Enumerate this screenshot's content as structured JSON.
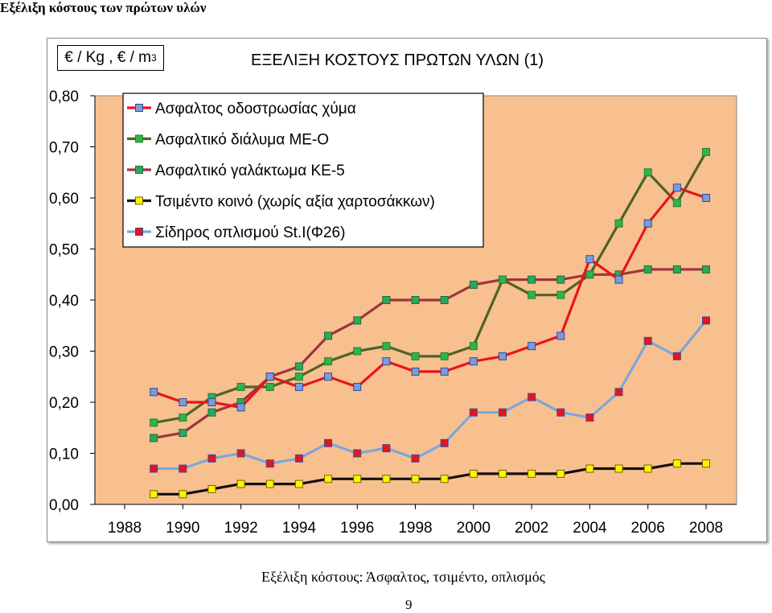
{
  "page_header": "Εξέλιξη κόστους των πρώτων υλών",
  "caption": "Εξέλιξη κόστους: Άσφαλτος, τσιμέντο, οπλισμός",
  "page_number": "9",
  "unit_label": {
    "main": "€ / Kg , € / m",
    "sup": "3"
  },
  "colors": {
    "plot_background": "#F8C08F",
    "axis": "#000000"
  },
  "chart_data": {
    "type": "line",
    "title": "ΕΞΕΛΙΞΗ ΚΟΣΤΟΥΣ ΠΡΩΤΩΝ ΥΛΩΝ (1)",
    "xlabel": "",
    "ylabel": "€ / Kg , € / m3",
    "xlim": [
      1988,
      2008
    ],
    "ylim": [
      0,
      0.8
    ],
    "x_ticks": [
      "1988",
      "1990",
      "1992",
      "1994",
      "1996",
      "1998",
      "2000",
      "2002",
      "2004",
      "2006",
      "2008"
    ],
    "y_ticks": [
      "0,00",
      "0,10",
      "0,20",
      "0,30",
      "0,40",
      "0,50",
      "0,60",
      "0,70",
      "0,80"
    ],
    "grid": false,
    "legend_position": "top-left",
    "x": [
      1989,
      1990,
      1991,
      1992,
      1993,
      1994,
      1995,
      1996,
      1997,
      1998,
      1999,
      2000,
      2001,
      2002,
      2003,
      2004,
      2005,
      2006,
      2007,
      2008
    ],
    "series": [
      {
        "name": "Ασφαλτος οδοστρωσίας χύμα",
        "line_color": "#E8141B",
        "marker_color": "#7B9CD6",
        "marker_border": "#2E4B9E",
        "values": [
          0.22,
          0.2,
          0.2,
          0.19,
          0.25,
          0.23,
          0.25,
          0.23,
          0.28,
          0.26,
          0.26,
          0.28,
          0.29,
          0.31,
          0.33,
          0.48,
          0.44,
          0.55,
          0.62,
          0.6
        ]
      },
      {
        "name": "Ασφαλτικό διάλυμα ΜΕ-Ο",
        "line_color": "#4F6228",
        "marker_color": "#2BB54A",
        "marker_border": "#2E7D32",
        "values": [
          0.16,
          0.17,
          0.21,
          0.23,
          0.23,
          0.25,
          0.28,
          0.3,
          0.31,
          0.29,
          0.29,
          0.31,
          0.44,
          0.41,
          0.41,
          0.45,
          0.55,
          0.65,
          0.59,
          0.69
        ]
      },
      {
        "name": "Ασφαλτικό γαλάκτωμα ΚΕ-5",
        "line_color": "#A0353B",
        "marker_color": "#2BA85A",
        "marker_border": "#1E6E3A",
        "values": [
          0.13,
          0.14,
          0.18,
          0.2,
          0.25,
          0.27,
          0.33,
          0.36,
          0.4,
          0.4,
          0.4,
          0.43,
          0.44,
          0.44,
          0.44,
          0.45,
          0.45,
          0.46,
          0.46,
          0.46
        ]
      },
      {
        "name": "Τσιμέντο κοινό (χωρίς αξία χαρτοσάκκων)",
        "line_color": "#101010",
        "marker_color": "#FFF200",
        "marker_border": "#6E6A00",
        "values": [
          0.02,
          0.02,
          0.03,
          0.04,
          0.04,
          0.04,
          0.05,
          0.05,
          0.05,
          0.05,
          0.05,
          0.06,
          0.06,
          0.06,
          0.06,
          0.07,
          0.07,
          0.07,
          0.08,
          0.08
        ]
      },
      {
        "name": "Σίδηρος οπλισμού St.I(Φ26)",
        "line_color": "#7BA7DB",
        "marker_color": "#E8141B",
        "marker_border": "#3A4F9A",
        "values": [
          0.07,
          0.07,
          0.09,
          0.1,
          0.08,
          0.09,
          0.12,
          0.1,
          0.11,
          0.09,
          0.12,
          0.18,
          0.18,
          0.21,
          0.18,
          0.17,
          0.22,
          0.32,
          0.29,
          0.36
        ]
      }
    ]
  }
}
